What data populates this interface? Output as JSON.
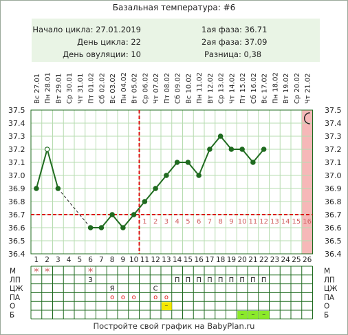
{
  "title": "Базальная температура: #6",
  "info": {
    "cycle_start_label": "Начало цикла:",
    "cycle_start": "27.01.2019",
    "cycle_day_label": "День цикла:",
    "cycle_day": "22",
    "ovulation_day_label": "День овуляции:",
    "ovulation_day": "10",
    "phase1_label": "1ая фаза:",
    "phase1": "36.71",
    "phase2_label": "2ая фаза:",
    "phase2": "37.09",
    "diff_label": "Разница:",
    "diff": "0,38"
  },
  "footer": "Постройте свой график на BabyPlan.ru",
  "colors": {
    "line": "#1f6b1f",
    "dash": "#dd1111",
    "grid": "#b7dcb0",
    "phase_label": "#d06060",
    "highlight": "#f6b8b8",
    "yellow": "#f5e800",
    "green": "#8bea2a"
  },
  "icons": {
    "moon": "moon-icon"
  },
  "chart_data": {
    "type": "line",
    "dates": [
      "Вс 27.01",
      "Пн 28.01",
      "Вт 29.01",
      "Ср 30.01",
      "Чт 31.01",
      "Пт 01.02",
      "Сб 02.02",
      "Вс 03.02",
      "Пн 04.02",
      "Вт 05.02",
      "Ср 06.02",
      "Чт 07.02",
      "Пт 08.02",
      "Сб 09.02",
      "Вс 10.02",
      "Пн 11.02",
      "Вт 12.02",
      "Ср 13.02",
      "Чт 14.02",
      "Пт 15.02",
      "Сб 16.02",
      "Вс 17.02",
      "Пн 18.02",
      "Вт 19.02",
      "Ср 20.02",
      "Чт 21.02"
    ],
    "days": [
      "1",
      "2",
      "3",
      "4",
      "5",
      "6",
      "7",
      "8",
      "9",
      "10",
      "11",
      "12",
      "13",
      "14",
      "15",
      "16",
      "17",
      "18",
      "19",
      "20",
      "21",
      "22",
      "23",
      "24",
      "25",
      "26"
    ],
    "y_ticks": [
      "37.5",
      "37.4",
      "37.3",
      "37.2",
      "37.1",
      "37.0",
      "36.9",
      "36.8",
      "36.7",
      "36.6",
      "36.5",
      "36.4"
    ],
    "ylim": [
      36.4,
      37.5
    ],
    "values": [
      36.9,
      37.2,
      36.9,
      null,
      null,
      36.6,
      36.6,
      36.7,
      36.6,
      36.7,
      36.8,
      36.9,
      37.0,
      37.1,
      37.1,
      37.0,
      37.2,
      37.3,
      37.2,
      37.2,
      37.1,
      37.2,
      null,
      null,
      null,
      null
    ],
    "hollow_points": [
      2
    ],
    "gap": {
      "from": 3,
      "to": 6
    },
    "coverline": 36.7,
    "ovulation_day": 10,
    "phase_labels": [
      "1",
      "2",
      "3",
      "4",
      "5",
      "6",
      "7",
      "8",
      "9",
      "10",
      "11",
      "12",
      "13",
      "14",
      "15",
      "16"
    ],
    "highlight_day": 26,
    "grid": true
  },
  "table": {
    "row_labels": [
      "М",
      "ЛП",
      "ЦЖ",
      "ПА",
      "О",
      "Б"
    ],
    "marks": [
      {
        "row": 0,
        "day": 1,
        "text": "*",
        "kind": "star"
      },
      {
        "row": 0,
        "day": 2,
        "text": "*",
        "kind": "star"
      },
      {
        "row": 0,
        "day": 6,
        "text": "*",
        "kind": "star"
      },
      {
        "row": 1,
        "day": 6,
        "text": "З",
        "kind": "text"
      },
      {
        "row": 1,
        "day": 14,
        "text": "П",
        "kind": "text"
      },
      {
        "row": 1,
        "day": 15,
        "text": "П",
        "kind": "text"
      },
      {
        "row": 1,
        "day": 16,
        "text": "П",
        "kind": "text"
      },
      {
        "row": 1,
        "day": 17,
        "text": "П",
        "kind": "text"
      },
      {
        "row": 1,
        "day": 18,
        "text": "П",
        "kind": "text"
      },
      {
        "row": 1,
        "day": 19,
        "text": "П",
        "kind": "text"
      },
      {
        "row": 1,
        "day": 20,
        "text": "П",
        "kind": "text"
      },
      {
        "row": 1,
        "day": 21,
        "text": "П",
        "kind": "text"
      },
      {
        "row": 1,
        "day": 22,
        "text": "П",
        "kind": "text"
      },
      {
        "row": 2,
        "day": 8,
        "text": "Я",
        "kind": "text"
      },
      {
        "row": 2,
        "day": 12,
        "text": "С",
        "kind": "text"
      },
      {
        "row": 3,
        "day": 8,
        "text": "o",
        "kind": "circle"
      },
      {
        "row": 3,
        "day": 9,
        "text": "o",
        "kind": "circle"
      },
      {
        "row": 3,
        "day": 10,
        "text": "o",
        "kind": "circle"
      },
      {
        "row": 3,
        "day": 12,
        "text": "o",
        "kind": "circle"
      },
      {
        "row": 3,
        "day": 13,
        "text": "o",
        "kind": "circle"
      },
      {
        "row": 4,
        "day": 13,
        "text": "–",
        "kind": "yellow"
      },
      {
        "row": 5,
        "day": 20,
        "text": "–",
        "kind": "green"
      },
      {
        "row": 5,
        "day": 21,
        "text": "–",
        "kind": "green"
      },
      {
        "row": 5,
        "day": 22,
        "text": "–",
        "kind": "green"
      }
    ]
  }
}
